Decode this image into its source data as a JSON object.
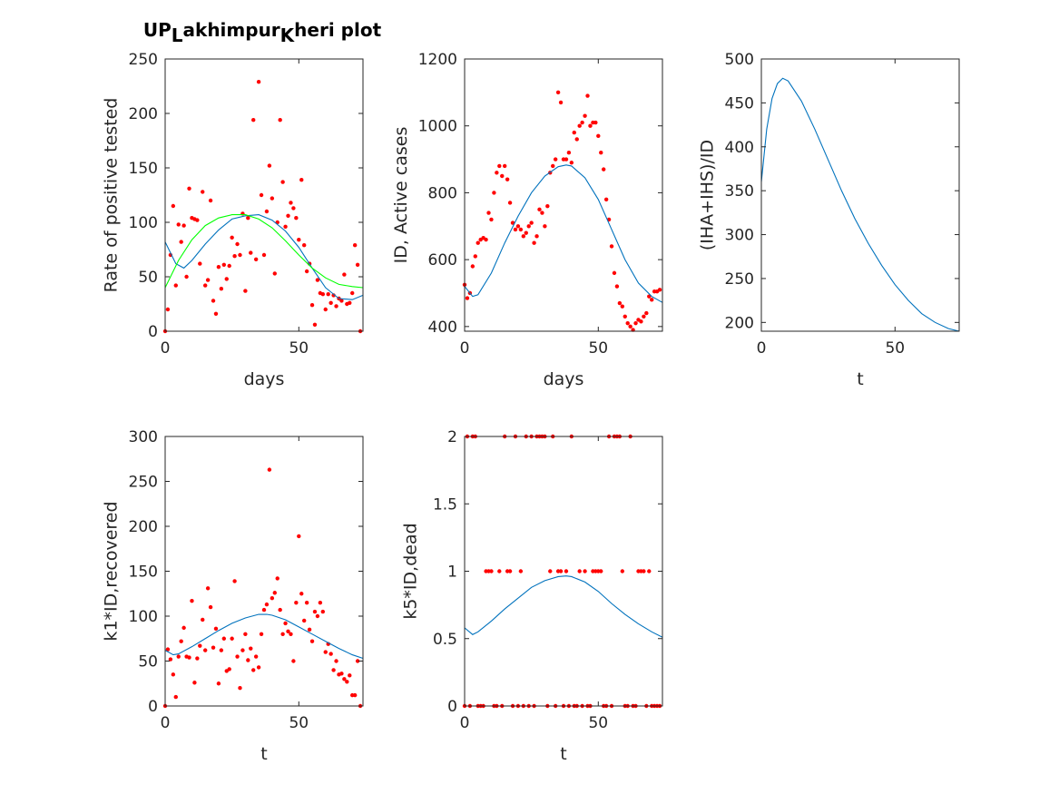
{
  "chart_data": [
    {
      "type": "line",
      "title": [
        {
          "text": "UP"
        },
        {
          "text": "L",
          "sub": true
        },
        {
          "text": "akhimpur"
        },
        {
          "text": "K",
          "sub": true
        },
        {
          "text": "heri plot"
        }
      ],
      "xlabel": "days",
      "ylabel": "Rate of positive tested",
      "xlim": [
        0,
        74
      ],
      "ylim": [
        0,
        250
      ],
      "xticks": [
        0,
        50
      ],
      "yticks": [
        0,
        50,
        100,
        150,
        200,
        250
      ],
      "series": [
        {
          "style": "markers",
          "color": "#ff0000",
          "x": [
            0,
            1,
            2,
            3,
            4,
            5,
            6,
            7,
            8,
            9,
            10,
            11,
            12,
            13,
            14,
            15,
            16,
            17,
            18,
            19,
            20,
            21,
            22,
            23,
            24,
            25,
            26,
            27,
            28,
            29,
            30,
            31,
            32,
            33,
            34,
            35,
            36,
            37,
            38,
            39,
            40,
            41,
            42,
            43,
            44,
            45,
            46,
            47,
            48,
            49,
            50,
            51,
            52,
            53,
            54,
            55,
            56,
            57,
            58,
            59,
            60,
            61,
            62,
            63,
            64,
            65,
            66,
            67,
            68,
            69,
            70,
            71,
            72,
            73
          ],
          "values": [
            0,
            20,
            70,
            115,
            42,
            98,
            82,
            97,
            50,
            131,
            104,
            103,
            102,
            62,
            128,
            42,
            47,
            120,
            28,
            16,
            59,
            39,
            61,
            48,
            60,
            86,
            69,
            80,
            70,
            108,
            37,
            104,
            72,
            194,
            66,
            229,
            125,
            70,
            110,
            152,
            122,
            53,
            100,
            194,
            137,
            96,
            106,
            118,
            113,
            104,
            84,
            139,
            79,
            55,
            62,
            24,
            6,
            47,
            35,
            34,
            20,
            34,
            26,
            33,
            23,
            30,
            28,
            52,
            25,
            26,
            35,
            79,
            61,
            0
          ]
        },
        {
          "style": "line",
          "color": "#0072bd",
          "x": [
            0,
            4,
            7,
            10,
            15,
            20,
            25,
            30,
            35,
            40,
            45,
            50,
            55,
            60,
            65,
            70,
            74
          ],
          "values": [
            82,
            62,
            58,
            65,
            80,
            93,
            103,
            106,
            107,
            102,
            92,
            77,
            58,
            40,
            30,
            29,
            33
          ]
        },
        {
          "style": "line",
          "color": "#00ff00",
          "x": [
            0,
            5,
            10,
            15,
            20,
            25,
            30,
            35,
            40,
            45,
            50,
            55,
            60,
            65,
            70,
            74
          ],
          "values": [
            40,
            65,
            84,
            97,
            104,
            107,
            107,
            103,
            95,
            83,
            70,
            58,
            49,
            43,
            41,
            40
          ]
        }
      ]
    },
    {
      "type": "line",
      "xlabel": "days",
      "ylabel": "ID, Active cases",
      "xlim": [
        0,
        74
      ],
      "ylim": [
        386,
        1200
      ],
      "xticks": [
        0,
        50
      ],
      "yticks": [
        400,
        600,
        800,
        1000,
        1200
      ],
      "series": [
        {
          "style": "markers",
          "color": "#ff0000",
          "x": [
            0,
            1,
            2,
            3,
            4,
            5,
            6,
            7,
            8,
            9,
            10,
            11,
            12,
            13,
            14,
            15,
            16,
            17,
            18,
            19,
            20,
            21,
            22,
            23,
            24,
            25,
            26,
            27,
            28,
            29,
            30,
            31,
            32,
            33,
            34,
            35,
            36,
            37,
            38,
            39,
            40,
            41,
            42,
            43,
            44,
            45,
            46,
            47,
            48,
            49,
            50,
            51,
            52,
            53,
            54,
            55,
            56,
            57,
            58,
            59,
            60,
            61,
            62,
            63,
            64,
            65,
            66,
            67,
            68,
            69,
            70,
            71,
            72,
            73
          ],
          "values": [
            525,
            485,
            500,
            580,
            610,
            650,
            660,
            665,
            660,
            740,
            720,
            800,
            860,
            880,
            850,
            880,
            840,
            770,
            710,
            690,
            700,
            690,
            670,
            680,
            700,
            710,
            650,
            670,
            750,
            740,
            700,
            760,
            860,
            880,
            900,
            1100,
            1070,
            900,
            900,
            920,
            890,
            980,
            960,
            1000,
            1010,
            1030,
            1090,
            1000,
            1010,
            1010,
            970,
            920,
            870,
            780,
            720,
            640,
            560,
            520,
            470,
            460,
            430,
            410,
            400,
            390,
            410,
            420,
            415,
            430,
            440,
            490,
            480,
            505,
            505,
            510
          ]
        },
        {
          "style": "line",
          "color": "#0072bd",
          "x": [
            0,
            3,
            5,
            10,
            15,
            20,
            25,
            30,
            35,
            38,
            40,
            45,
            50,
            55,
            60,
            65,
            70,
            74
          ],
          "values": [
            520,
            490,
            495,
            560,
            650,
            730,
            800,
            850,
            878,
            883,
            880,
            845,
            780,
            690,
            600,
            530,
            490,
            472
          ]
        }
      ]
    },
    {
      "type": "line",
      "xlabel": "t",
      "ylabel": "(IHA+IHS)/ID",
      "xlim": [
        0,
        74
      ],
      "ylim": [
        190,
        500
      ],
      "xticks": [
        0,
        50
      ],
      "yticks": [
        200,
        250,
        300,
        350,
        400,
        450,
        500
      ],
      "series": [
        {
          "style": "line",
          "color": "#0072bd",
          "x": [
            0,
            2,
            4,
            6,
            8,
            10,
            15,
            20,
            25,
            30,
            35,
            40,
            45,
            50,
            55,
            60,
            65,
            70,
            74
          ],
          "values": [
            360,
            420,
            455,
            472,
            478,
            475,
            452,
            420,
            385,
            350,
            318,
            290,
            265,
            243,
            225,
            210,
            200,
            193,
            190
          ]
        }
      ]
    },
    {
      "type": "line",
      "xlabel": "t",
      "ylabel": "k1*ID,recovered",
      "xlim": [
        0,
        74
      ],
      "ylim": [
        0,
        300
      ],
      "xticks": [
        0,
        50
      ],
      "yticks": [
        0,
        50,
        100,
        150,
        200,
        250,
        300
      ],
      "series": [
        {
          "style": "markers",
          "color": "#ff0000",
          "x": [
            0,
            1,
            2,
            3,
            4,
            5,
            6,
            7,
            8,
            9,
            10,
            11,
            12,
            13,
            14,
            15,
            16,
            17,
            18,
            19,
            20,
            21,
            22,
            23,
            24,
            25,
            26,
            27,
            28,
            29,
            30,
            31,
            32,
            33,
            34,
            35,
            36,
            37,
            38,
            39,
            40,
            41,
            42,
            43,
            44,
            45,
            46,
            47,
            48,
            49,
            50,
            51,
            52,
            53,
            54,
            55,
            56,
            57,
            58,
            59,
            60,
            61,
            62,
            63,
            64,
            65,
            66,
            67,
            68,
            69,
            70,
            71,
            72,
            73
          ],
          "values": [
            0,
            63,
            52,
            35,
            10,
            55,
            72,
            87,
            55,
            54,
            117,
            26,
            53,
            67,
            96,
            62,
            131,
            110,
            65,
            86,
            25,
            62,
            75,
            39,
            41,
            75,
            139,
            55,
            20,
            62,
            80,
            51,
            64,
            40,
            55,
            43,
            80,
            107,
            113,
            263,
            120,
            126,
            142,
            107,
            80,
            92,
            83,
            80,
            50,
            115,
            189,
            125,
            95,
            115,
            85,
            72,
            105,
            100,
            115,
            105,
            60,
            69,
            58,
            40,
            50,
            35,
            36,
            30,
            27,
            34,
            12,
            12,
            50,
            0
          ]
        },
        {
          "style": "line",
          "color": "#0072bd",
          "x": [
            0,
            3,
            5,
            10,
            15,
            20,
            25,
            30,
            35,
            38,
            40,
            45,
            50,
            55,
            60,
            65,
            70,
            74
          ],
          "values": [
            62,
            57,
            58,
            66,
            75,
            84,
            92,
            98,
            102,
            102,
            101,
            96,
            88,
            80,
            72,
            64,
            57,
            53
          ]
        }
      ]
    },
    {
      "type": "line",
      "xlabel": "t",
      "ylabel": "k5*ID,dead",
      "xlim": [
        0,
        74
      ],
      "ylim": [
        0,
        2
      ],
      "xticks": [
        0,
        50
      ],
      "yticks": [
        0,
        0.5,
        1,
        1.5,
        2
      ],
      "series": [
        {
          "style": "markers",
          "color": "#ff0000",
          "x": [
            0,
            1,
            2,
            3,
            4,
            5,
            6,
            7,
            8,
            9,
            10,
            11,
            12,
            13,
            14,
            15,
            16,
            17,
            18,
            19,
            20,
            21,
            22,
            23,
            24,
            25,
            26,
            27,
            28,
            29,
            30,
            31,
            32,
            33,
            34,
            35,
            36,
            37,
            38,
            39,
            40,
            41,
            42,
            43,
            44,
            45,
            46,
            47,
            48,
            49,
            50,
            51,
            52,
            53,
            54,
            55,
            56,
            57,
            58,
            59,
            60,
            61,
            62,
            63,
            64,
            65,
            66,
            67,
            68,
            69,
            70,
            71,
            72,
            73
          ],
          "values": [
            0,
            2,
            0,
            2,
            2,
            0,
            0,
            0,
            1,
            1,
            1,
            0,
            0,
            1,
            0,
            2,
            1,
            1,
            0,
            2,
            0,
            1,
            0,
            2,
            0,
            2,
            0,
            2,
            2,
            2,
            2,
            0,
            1,
            2,
            0,
            1,
            1,
            0,
            1,
            0,
            2,
            0,
            0,
            1,
            0,
            1,
            0,
            0,
            1,
            1,
            1,
            1,
            0,
            0,
            2,
            0,
            2,
            2,
            2,
            1,
            0,
            0,
            2,
            0,
            0,
            1,
            1,
            1,
            0,
            1,
            0,
            0,
            0,
            0
          ]
        },
        {
          "style": "line",
          "color": "#0072bd",
          "x": [
            0,
            3,
            5,
            10,
            15,
            20,
            25,
            30,
            35,
            38,
            40,
            45,
            50,
            55,
            60,
            65,
            70,
            74
          ],
          "values": [
            0.58,
            0.53,
            0.55,
            0.63,
            0.72,
            0.8,
            0.88,
            0.93,
            0.96,
            0.965,
            0.96,
            0.92,
            0.85,
            0.76,
            0.68,
            0.61,
            0.55,
            0.51
          ]
        }
      ]
    }
  ]
}
